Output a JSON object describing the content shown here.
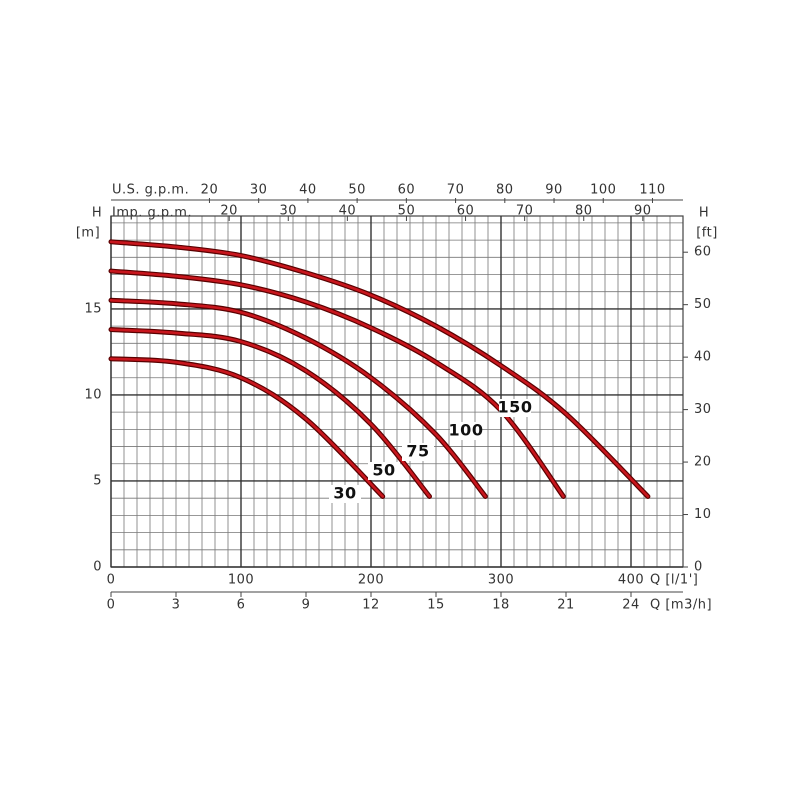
{
  "chart_data": {
    "type": "line",
    "x_label": "Q [l/1']",
    "xlim": [
      0,
      440
    ],
    "xticks": [
      0,
      100,
      200,
      300,
      400
    ],
    "x2_label": "Q [m3/h]",
    "x2lim": [
      0,
      26.4
    ],
    "x2ticks": [
      0,
      3,
      6,
      9,
      12,
      15,
      18,
      21,
      24
    ],
    "x3_label": "U.S. g.p.m.",
    "x3lim": [
      0,
      116.2
    ],
    "x3ticks": [
      20,
      30,
      40,
      50,
      60,
      70,
      80,
      90,
      100,
      110
    ],
    "x4_label": "Imp. g.p.m.",
    "x4lim": [
      0,
      96.8
    ],
    "x4ticks": [
      20,
      30,
      40,
      50,
      60,
      70,
      80,
      90
    ],
    "y_label": "H",
    "y_unit": "[m]",
    "ylim": [
      0,
      20.4
    ],
    "yticks": [
      0,
      5,
      10,
      15
    ],
    "y2_label": "H",
    "y2_unit": "[ft]",
    "y2lim": [
      0,
      66.9
    ],
    "y2ticks": [
      0,
      10,
      20,
      30,
      40,
      50,
      60
    ],
    "grid": true,
    "grid_step_x": 10,
    "grid_step_y": 1,
    "series": [
      {
        "name": "30",
        "color": "#c8161d",
        "x": [
          0,
          50,
          100,
          150,
          209
        ],
        "values": [
          12.1,
          11.9,
          11.0,
          8.6,
          4.1
        ]
      },
      {
        "name": "50",
        "color": "#c8161d",
        "x": [
          0,
          50,
          100,
          150,
          200,
          245
        ],
        "values": [
          13.8,
          13.6,
          13.1,
          11.4,
          8.3,
          4.1
        ]
      },
      {
        "name": "75",
        "color": "#c8161d",
        "x": [
          0,
          50,
          100,
          150,
          200,
          250,
          288
        ],
        "values": [
          15.5,
          15.3,
          14.8,
          13.3,
          11.0,
          7.7,
          4.1
        ]
      },
      {
        "name": "100",
        "color": "#c8161d",
        "x": [
          0,
          50,
          100,
          150,
          200,
          250,
          300,
          348
        ],
        "values": [
          17.2,
          16.9,
          16.4,
          15.4,
          13.9,
          11.9,
          9.1,
          4.1
        ]
      },
      {
        "name": "150",
        "color": "#c8161d",
        "x": [
          0,
          50,
          100,
          150,
          200,
          250,
          300,
          350,
          413
        ],
        "values": [
          18.9,
          18.6,
          18.1,
          17.1,
          15.8,
          14.0,
          11.7,
          8.9,
          4.1
        ]
      }
    ]
  }
}
